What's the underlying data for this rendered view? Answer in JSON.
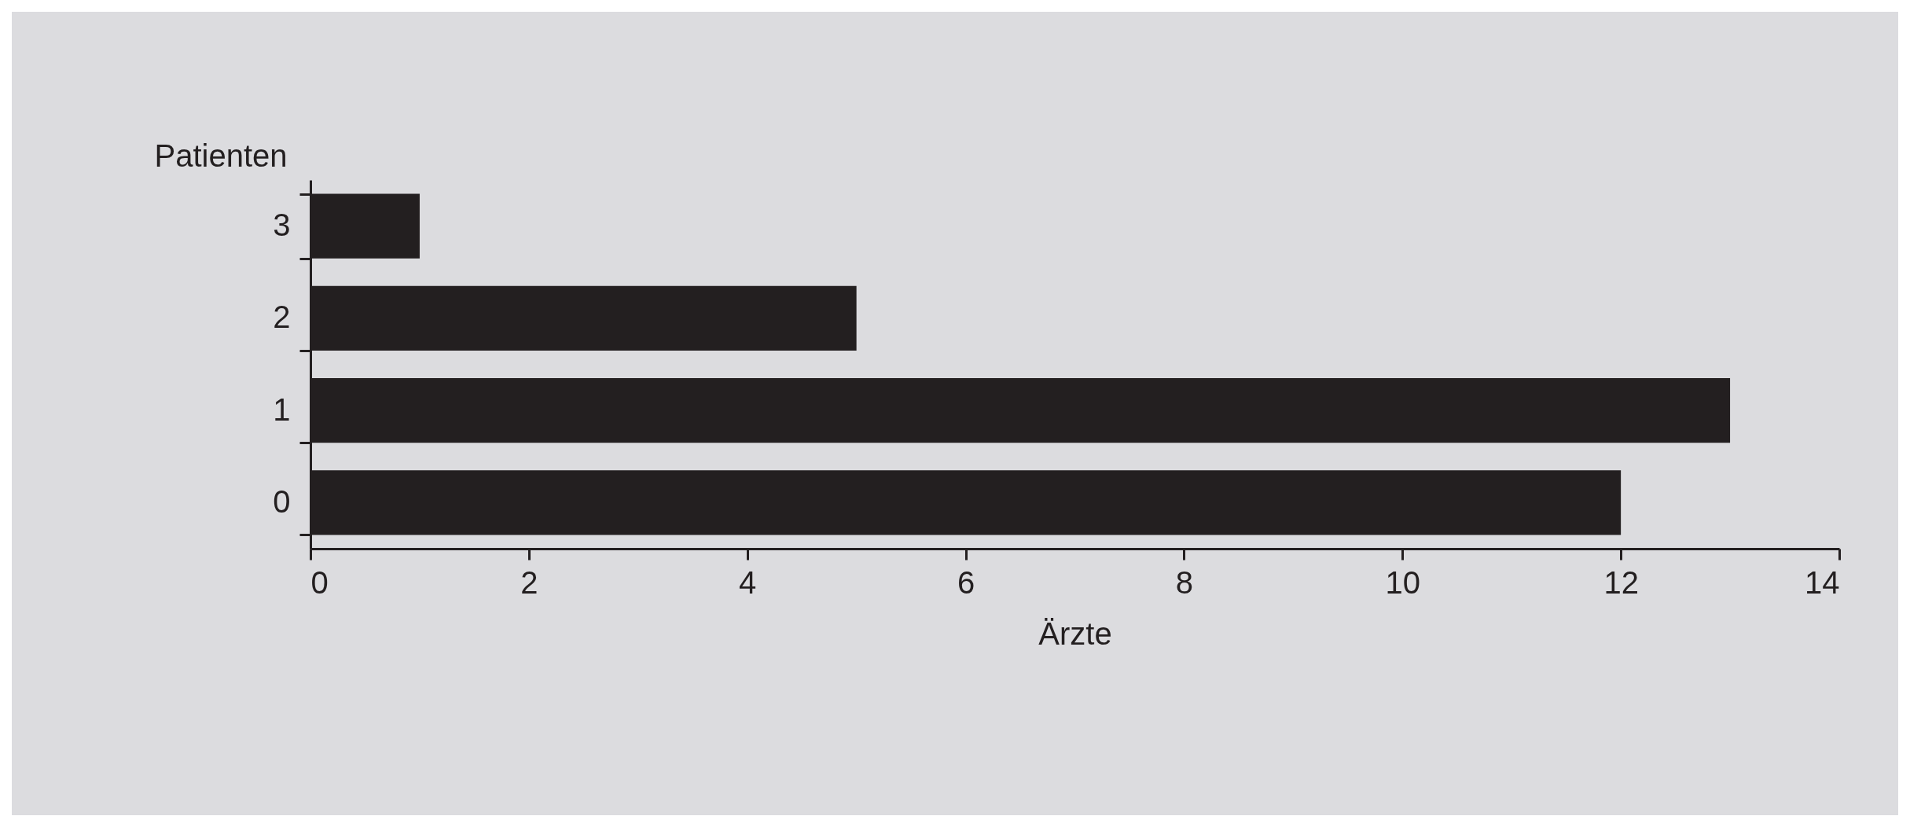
{
  "chart_data": {
    "type": "bar",
    "orientation": "horizontal",
    "xlabel": "Ärzte",
    "ylabel": "Patienten",
    "categories": [
      "3",
      "2",
      "1",
      "0"
    ],
    "values": [
      1,
      5,
      13,
      12
    ],
    "color": "#231f20",
    "xlim": [
      0,
      14
    ],
    "xticks": [
      0,
      2,
      4,
      6,
      8,
      10,
      12,
      14
    ]
  }
}
